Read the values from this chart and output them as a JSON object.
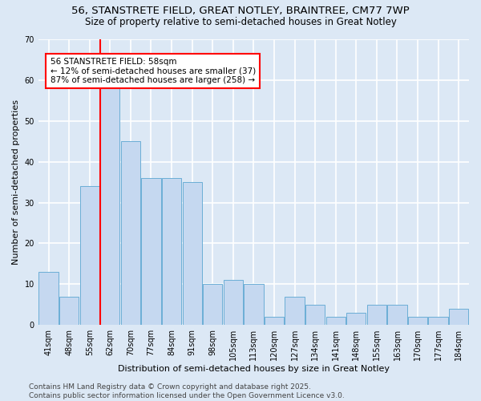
{
  "title_line1": "56, STANSTRETE FIELD, GREAT NOTLEY, BRAINTREE, CM77 7WP",
  "title_line2": "Size of property relative to semi-detached houses in Great Notley",
  "xlabel": "Distribution of semi-detached houses by size in Great Notley",
  "ylabel": "Number of semi-detached properties",
  "categories": [
    "41sqm",
    "48sqm",
    "55sqm",
    "62sqm",
    "70sqm",
    "77sqm",
    "84sqm",
    "91sqm",
    "98sqm",
    "105sqm",
    "113sqm",
    "120sqm",
    "127sqm",
    "134sqm",
    "141sqm",
    "148sqm",
    "155sqm",
    "163sqm",
    "170sqm",
    "177sqm",
    "184sqm"
  ],
  "values": [
    13,
    7,
    34,
    58,
    45,
    36,
    36,
    35,
    10,
    11,
    10,
    2,
    7,
    5,
    2,
    3,
    5,
    5,
    2,
    2,
    4
  ],
  "bar_color": "#c5d8f0",
  "bar_edge_color": "#6baed6",
  "background_color": "#dce8f5",
  "grid_color": "#ffffff",
  "red_line_x": 2.5,
  "annotation_line1": "56 STANSTRETE FIELD: 58sqm",
  "annotation_line2": "← 12% of semi-detached houses are smaller (37)",
  "annotation_line3": "87% of semi-detached houses are larger (258) →",
  "ylim": [
    0,
    70
  ],
  "yticks": [
    0,
    10,
    20,
    30,
    40,
    50,
    60,
    70
  ],
  "footer_text": "Contains HM Land Registry data © Crown copyright and database right 2025.\nContains public sector information licensed under the Open Government Licence v3.0.",
  "title_fontsize": 9.5,
  "subtitle_fontsize": 8.5,
  "axis_label_fontsize": 8,
  "tick_fontsize": 7,
  "annotation_fontsize": 7.5,
  "footer_fontsize": 6.5
}
